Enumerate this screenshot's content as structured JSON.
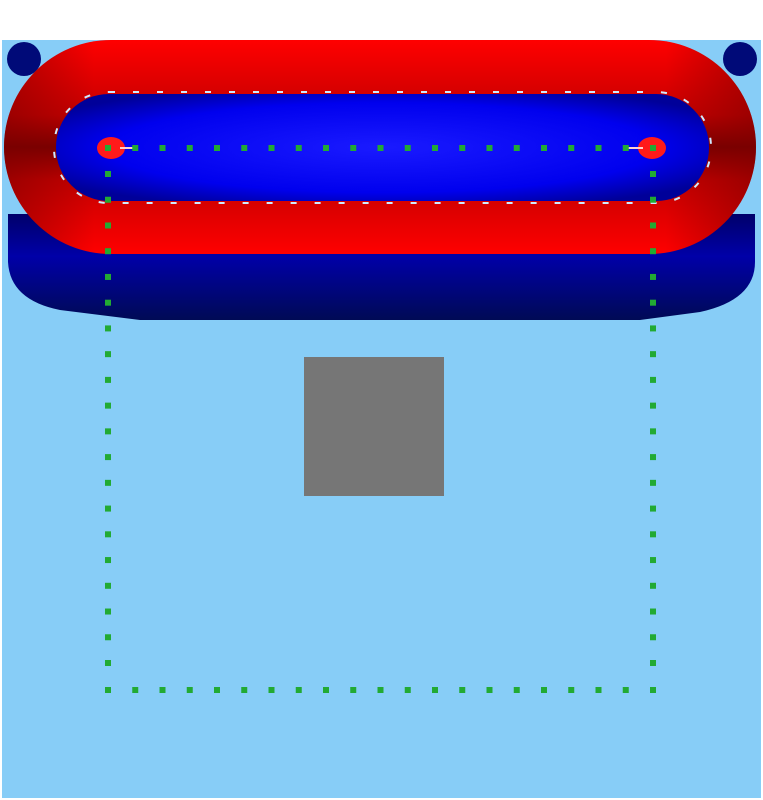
{
  "scene": {
    "kind": "field-simulation-frame",
    "colors": {
      "page_background": "#ffffff",
      "field_background": "#87cdf7",
      "positive_field": "#ff0000",
      "negative_field": "#0000ee",
      "dark_negative_field": "#000a78",
      "contour_line": "#cfeaff",
      "sensor_markers": "#22aa33",
      "obstacle": "#767676"
    },
    "sensor_markers": {
      "shape": "square-dots",
      "top_row_count": 21,
      "bottom_row_count": 21,
      "side_column_count": 20
    },
    "obstacle": {
      "shape": "square"
    }
  }
}
